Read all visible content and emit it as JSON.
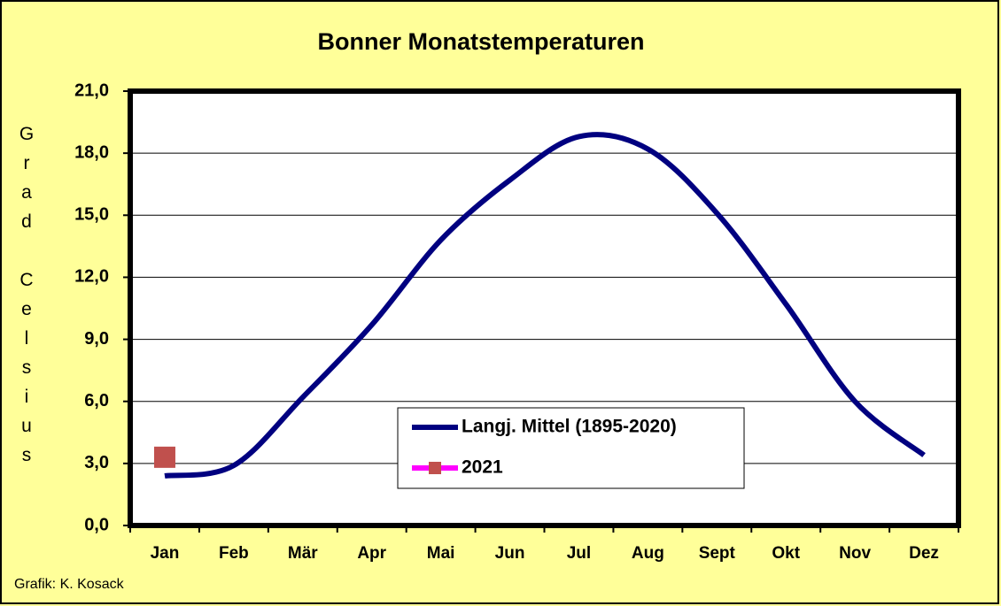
{
  "chart_data": {
    "type": "line",
    "title": "Bonner Monatstemperaturen",
    "y_label": "Grad Celsius",
    "footer": "Grafik:  K. Kosack",
    "categories": [
      "Jan",
      "Feb",
      "Mär",
      "Apr",
      "Mai",
      "Jun",
      "Jul",
      "Aug",
      "Sept",
      "Okt",
      "Nov",
      "Dez"
    ],
    "series": [
      {
        "name": "Langj. Mittel (1895-2020)",
        "color": "#000080",
        "values": [
          2.4,
          2.9,
          6.2,
          9.7,
          13.8,
          16.7,
          18.8,
          18.2,
          15.1,
          10.7,
          6.0,
          3.4
        ]
      },
      {
        "name": "2021",
        "color": "#ff00ff",
        "marker_color": "#c0504d",
        "values": [
          3.3,
          null,
          null,
          null,
          null,
          null,
          null,
          null,
          null,
          null,
          null,
          null
        ]
      }
    ],
    "ylim": [
      0,
      21
    ],
    "yticks": [
      {
        "value": 0,
        "label": "0,0"
      },
      {
        "value": 3,
        "label": "3,0"
      },
      {
        "value": 6,
        "label": "6,0"
      },
      {
        "value": 9,
        "label": "9,0"
      },
      {
        "value": 12,
        "label": "12,0"
      },
      {
        "value": 15,
        "label": "15,0"
      },
      {
        "value": 18,
        "label": "18,0"
      },
      {
        "value": 21,
        "label": "21,0"
      }
    ],
    "grid": true,
    "legend": "inside-bottom"
  }
}
